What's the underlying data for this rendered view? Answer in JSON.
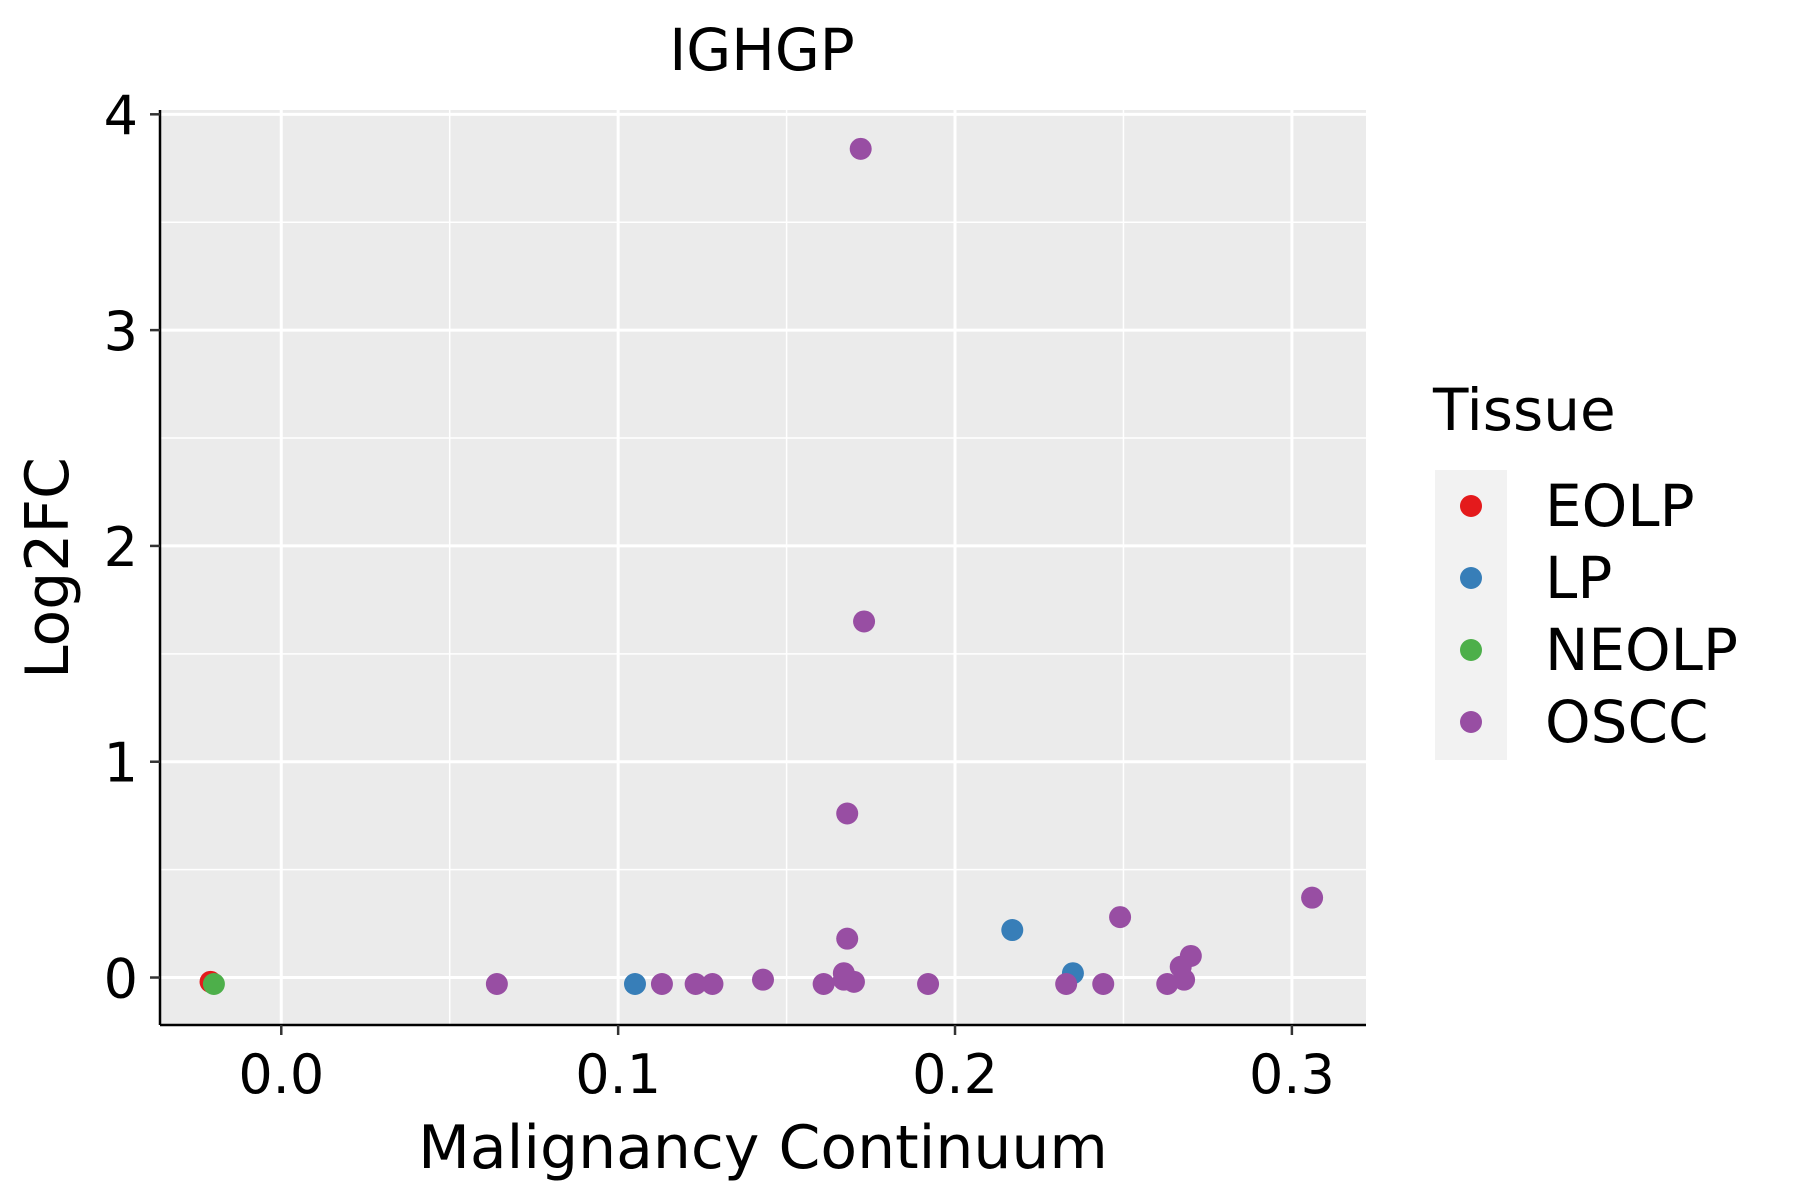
{
  "chart_data": {
    "type": "scatter",
    "title": "IGHGP",
    "xlabel": "Malignancy Continuum",
    "ylabel": "Log2FC",
    "xlim": [
      -0.036,
      0.322
    ],
    "ylim": [
      -0.22,
      4.02
    ],
    "x_ticks": [
      0.0,
      0.1,
      0.2,
      0.3
    ],
    "x_tick_labels": [
      "0.0",
      "0.1",
      "0.2",
      "0.3"
    ],
    "y_ticks": [
      0,
      1,
      2,
      3,
      4
    ],
    "y_tick_labels": [
      "0",
      "1",
      "2",
      "3",
      "4"
    ],
    "grid": true,
    "panel_background": "#EBEBEB",
    "legend": {
      "title": "Tissue",
      "position": "right"
    },
    "series": [
      {
        "name": "EOLP",
        "color": "#E41A1C",
        "points": [
          [
            -0.021,
            -0.02
          ]
        ]
      },
      {
        "name": "LP",
        "color": "#377EB8",
        "points": [
          [
            0.105,
            -0.03
          ],
          [
            0.217,
            0.22
          ],
          [
            0.235,
            0.02
          ]
        ]
      },
      {
        "name": "NEOLP",
        "color": "#4DAF4A",
        "points": [
          [
            -0.02,
            -0.03
          ]
        ]
      },
      {
        "name": "OSCC",
        "color": "#984EA3",
        "points": [
          [
            0.064,
            -0.03
          ],
          [
            0.113,
            -0.03
          ],
          [
            0.123,
            -0.03
          ],
          [
            0.128,
            -0.03
          ],
          [
            0.143,
            -0.01
          ],
          [
            0.161,
            -0.03
          ],
          [
            0.167,
            0.02
          ],
          [
            0.167,
            -0.01
          ],
          [
            0.17,
            -0.02
          ],
          [
            0.168,
            0.18
          ],
          [
            0.168,
            0.76
          ],
          [
            0.172,
            3.84
          ],
          [
            0.173,
            1.65
          ],
          [
            0.192,
            -0.03
          ],
          [
            0.233,
            -0.03
          ],
          [
            0.244,
            -0.03
          ],
          [
            0.249,
            0.28
          ],
          [
            0.263,
            -0.03
          ],
          [
            0.268,
            -0.01
          ],
          [
            0.267,
            0.05
          ],
          [
            0.27,
            0.1
          ],
          [
            0.306,
            0.37
          ]
        ]
      }
    ]
  }
}
